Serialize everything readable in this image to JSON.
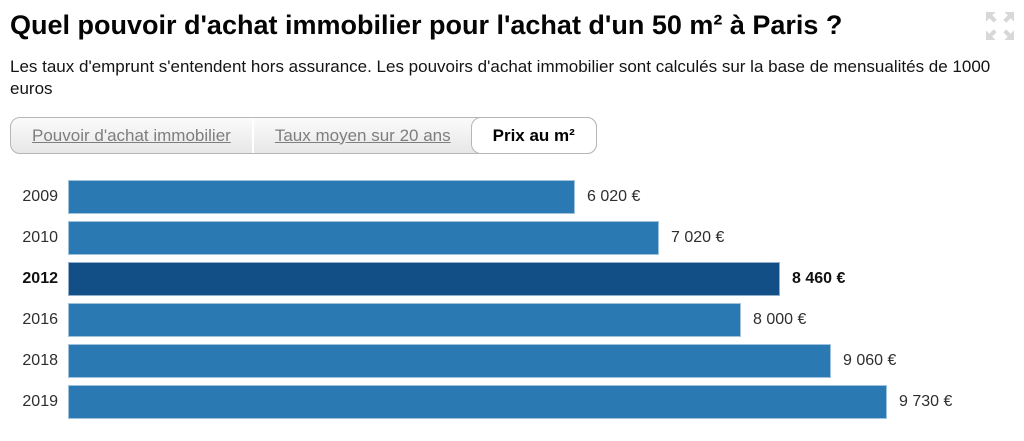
{
  "header": {
    "title": "Quel pouvoir d'achat immobilier pour l'achat d'un 50 m² à Paris ?",
    "subtitle": "Les taux d'emprunt s'entendent hors assurance. Les pouvoirs d'achat immobilier sont calculés sur la base de mensualités de 1000 euros",
    "expand_icon": "expand-arrows-icon"
  },
  "tabs": [
    {
      "label": "Pouvoir d'achat immobilier",
      "active": false
    },
    {
      "label": "Taux moyen sur 20 ans",
      "active": false
    },
    {
      "label": "Prix au m²",
      "active": true
    }
  ],
  "colors": {
    "bar": "#2b79b3",
    "bar_highlight": "#124f87",
    "tab_text": "#7e7e7e",
    "active_tab_text": "#000000",
    "expand_icon": "#d8d8d8"
  },
  "chart_data": {
    "type": "bar",
    "orientation": "horizontal",
    "title": "Prix au m²",
    "categories": [
      "2009",
      "2010",
      "2012",
      "2016",
      "2018",
      "2019"
    ],
    "values": [
      6020,
      7020,
      8460,
      8000,
      9060,
      9730
    ],
    "value_labels": [
      "6 020 €",
      "7 020 €",
      "8 460 €",
      "8 000 €",
      "9 060 €",
      "9 730 €"
    ],
    "highlighted_category": "2012",
    "unit": "€",
    "xlim": [
      0,
      9730
    ],
    "grid": false,
    "legend": false
  }
}
